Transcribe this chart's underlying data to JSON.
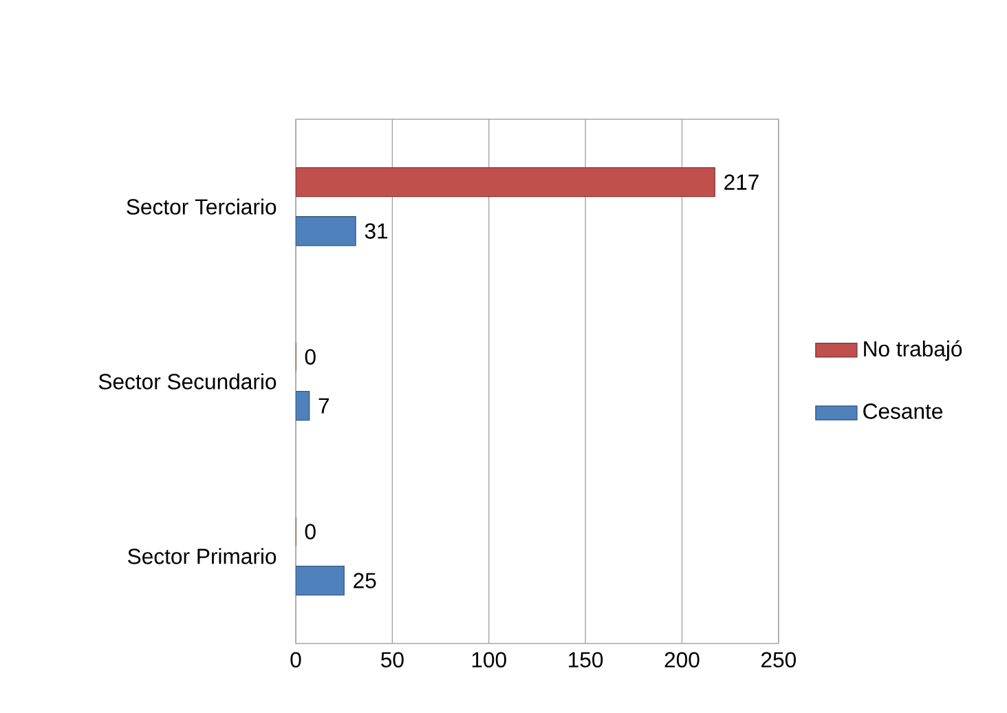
{
  "chart_data": {
    "type": "bar",
    "orientation": "horizontal",
    "categories": [
      "Sector Terciario",
      "Sector Secundario",
      "Sector Primario"
    ],
    "series": [
      {
        "name": "No trabajó",
        "color": "#c0504d",
        "values": [
          217,
          0,
          0
        ]
      },
      {
        "name": "Cesante",
        "color": "#4f81bd",
        "values": [
          31,
          7,
          25
        ]
      }
    ],
    "xlim": [
      0,
      250
    ],
    "xticks": [
      0,
      50,
      100,
      150,
      200,
      250
    ],
    "grid": "x",
    "legend": "right",
    "data_labels": true
  }
}
